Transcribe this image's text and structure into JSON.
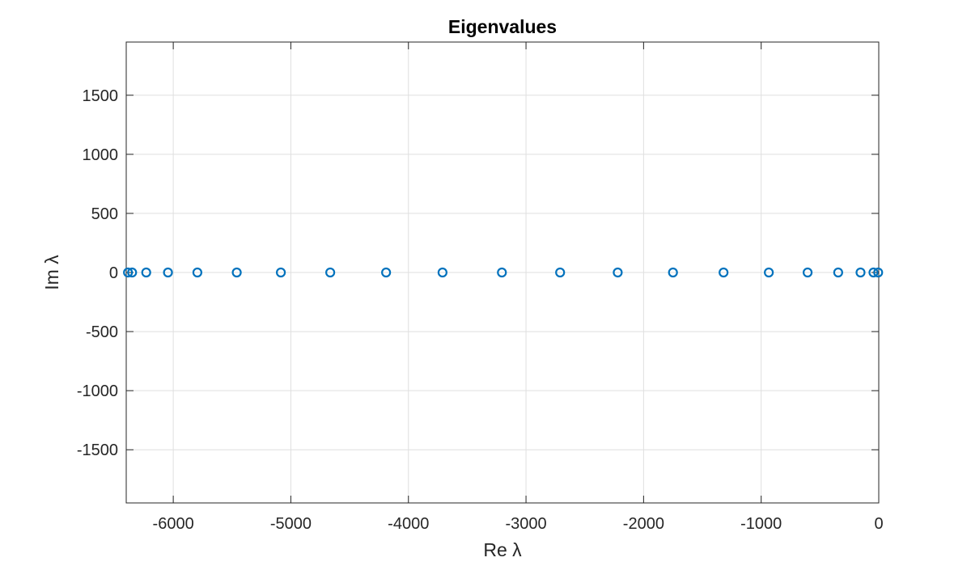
{
  "chart_data": {
    "type": "scatter",
    "title": "Eigenvalues",
    "xlabel": "Re λ",
    "ylabel": "Im λ",
    "xlim": [
      -6400,
      0
    ],
    "ylim": [
      -1950,
      1950
    ],
    "x_ticks": [
      -6000,
      -5000,
      -4000,
      -3000,
      -2000,
      -1000,
      0
    ],
    "y_ticks": [
      -1500,
      -1000,
      -500,
      0,
      500,
      1000,
      1500
    ],
    "grid": true,
    "marker": "circle-open",
    "color": "#0072BD",
    "series": [
      {
        "x": [
          -6385,
          -6350,
          -6230,
          -6045,
          -5795,
          -5460,
          -5085,
          -4665,
          -4190,
          -3710,
          -3205,
          -2710,
          -2220,
          -1750,
          -1320,
          -935,
          -605,
          -345,
          -155,
          -45,
          -5
        ],
        "y": [
          0,
          0,
          0,
          0,
          0,
          0,
          0,
          0,
          0,
          0,
          0,
          0,
          0,
          0,
          0,
          0,
          0,
          0,
          0,
          0,
          0
        ]
      }
    ]
  }
}
